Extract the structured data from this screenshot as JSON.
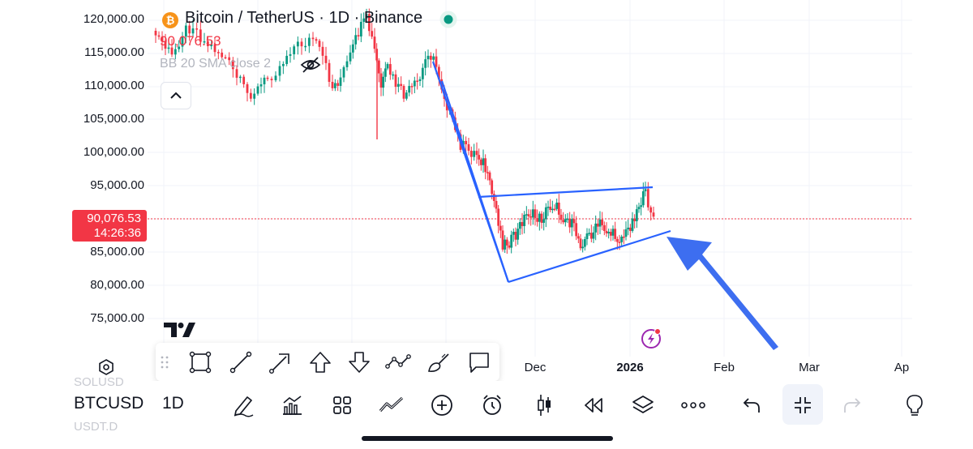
{
  "chart": {
    "title": "Bitcoin / TetherUS · 1D · Binance",
    "last_price": "90,076.53",
    "indicator": "BB 20 SMA close 2",
    "price_badge": {
      "price": "90,076.53",
      "countdown": "14:26:36"
    },
    "price_axis": [
      "120,000.00",
      "115,000.00",
      "110,000.00",
      "105,000.00",
      "100,000.00",
      "95,000.00",
      "85,000.00",
      "80,000.00",
      "75,000.00"
    ],
    "time_axis": [
      {
        "label": "Dec",
        "bold": false
      },
      {
        "label": "2026",
        "bold": true
      },
      {
        "label": "Feb",
        "bold": false
      },
      {
        "label": "Mar",
        "bold": false
      },
      {
        "label": "Ap",
        "bold": false
      }
    ],
    "colors": {
      "up": "#089981",
      "down": "#f23645",
      "trendline": "#2962ff",
      "arrow": "#3d6ef0",
      "live_dot": "#089981"
    }
  },
  "drawing_toolbar": {
    "tools": [
      "drag-handle",
      "rectangle",
      "trend-line",
      "arrow",
      "arrow-mark-up",
      "arrow-mark-down",
      "path",
      "brush",
      "callout"
    ]
  },
  "bottom_bar": {
    "symbol": "BTCUSD",
    "symbol_prev": "SOLUSD",
    "symbol_next": "USDT.D",
    "interval": "1D",
    "icons": [
      "pencil-icon",
      "indicators-icon",
      "templates-icon",
      "compare-icon",
      "add-icon",
      "alert-icon",
      "chart-type-icon",
      "replay-icon",
      "layers-icon",
      "more-icon",
      "undo-icon",
      "collapse-icon",
      "redo-icon",
      "lightbulb-icon"
    ]
  }
}
